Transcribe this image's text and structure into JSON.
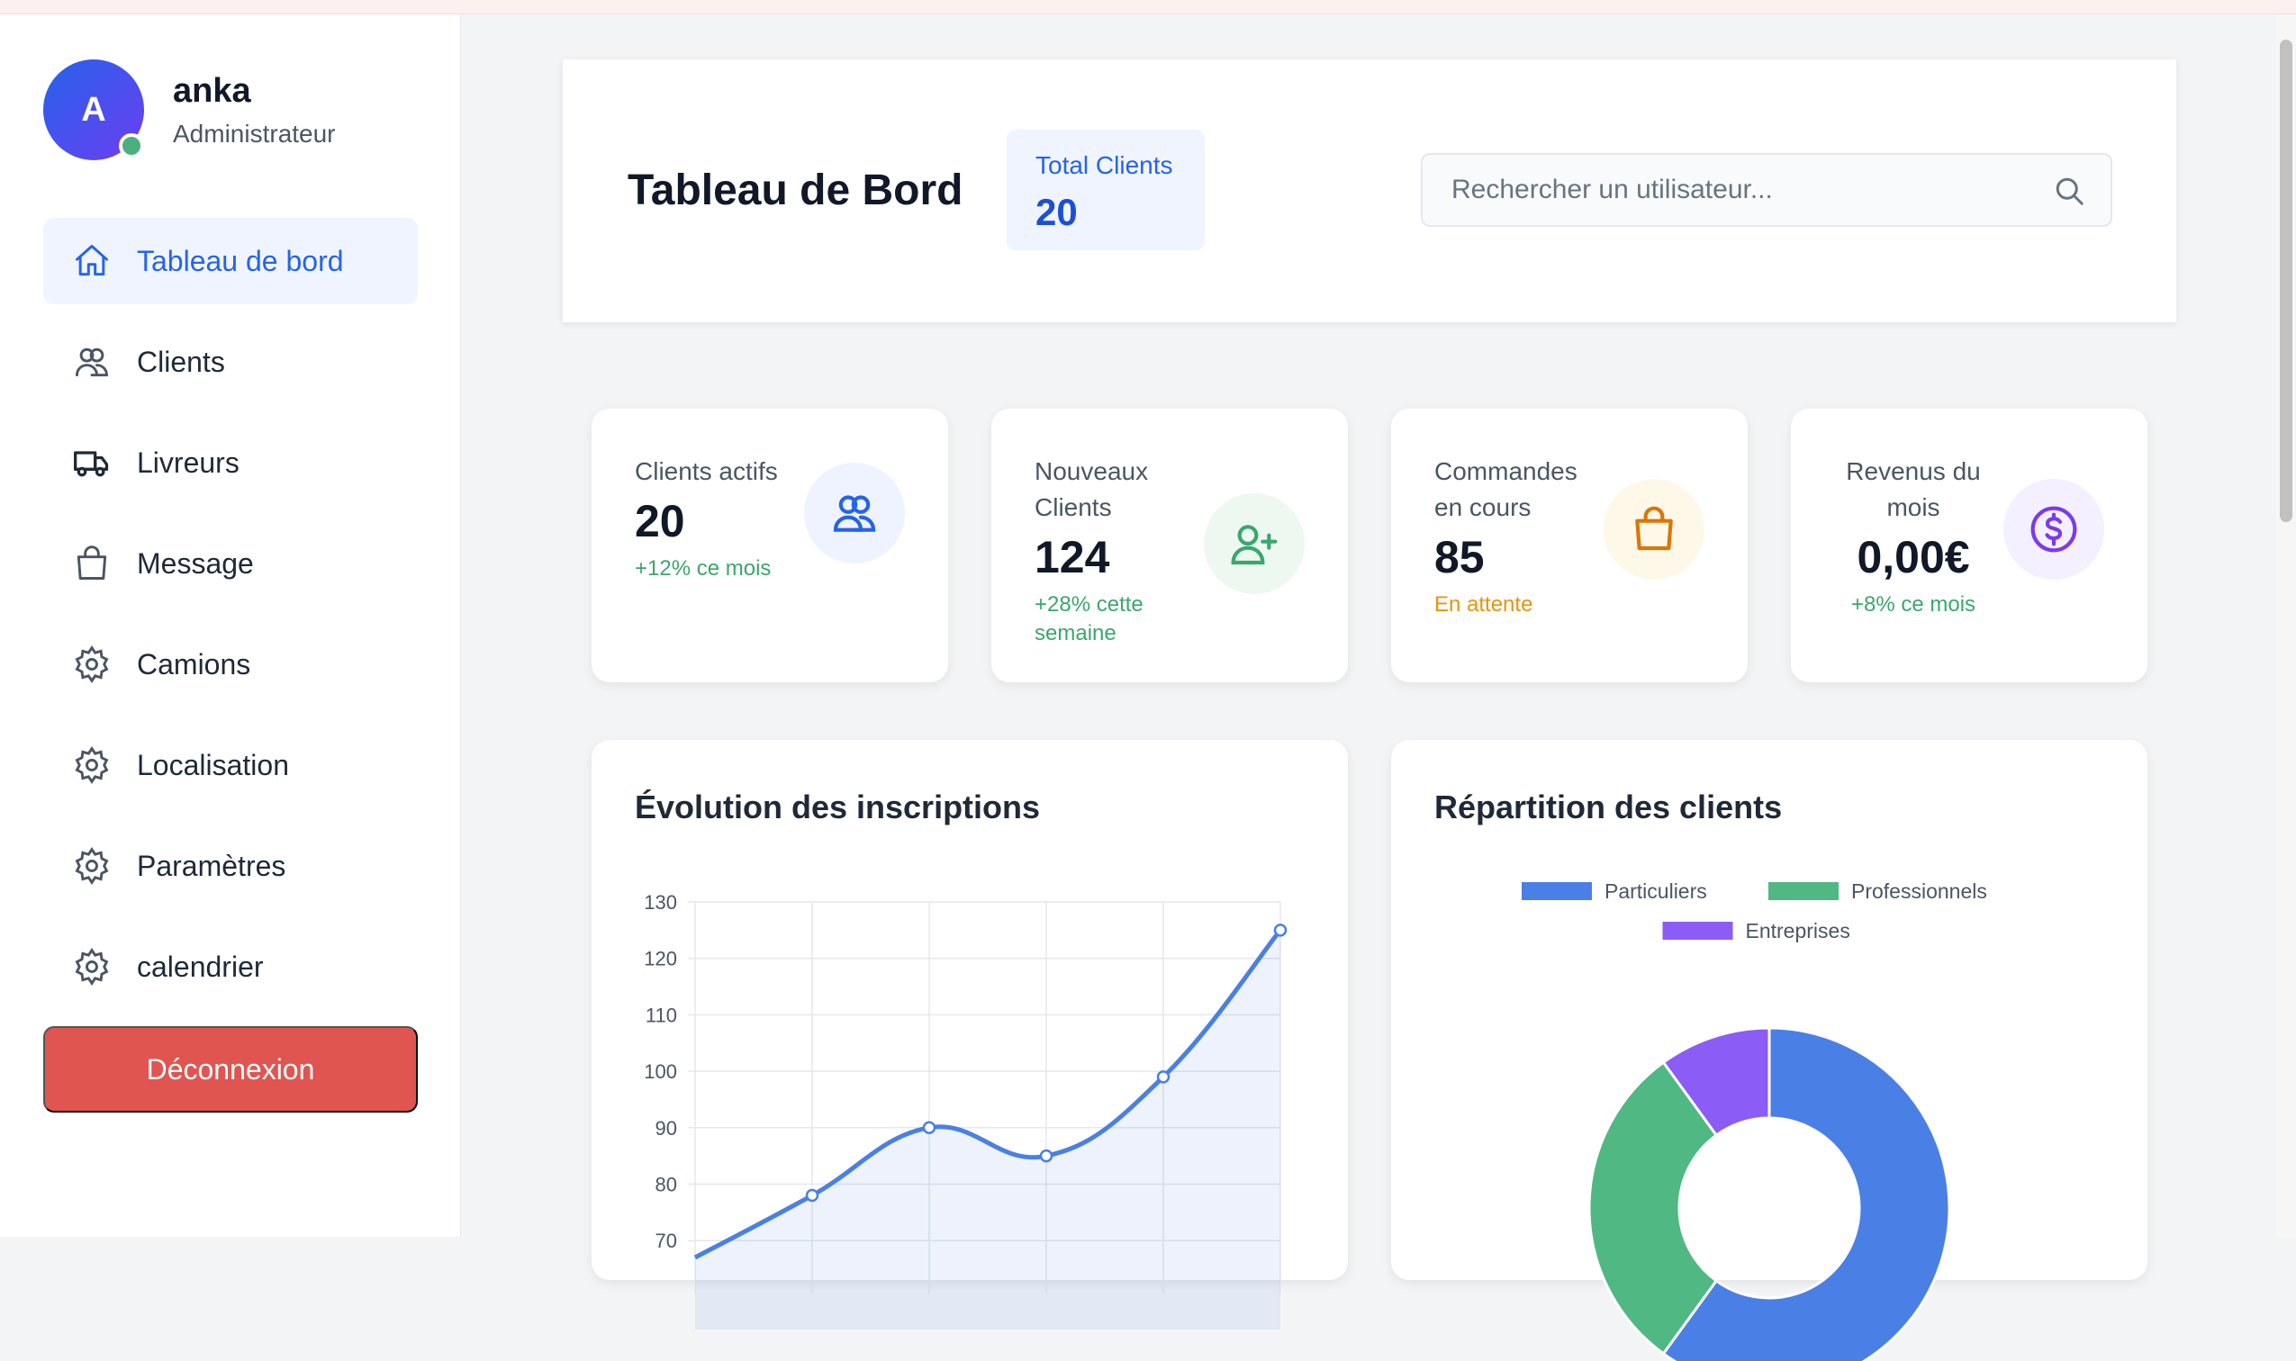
{
  "user": {
    "initial": "A",
    "name": "anka",
    "role": "Administrateur"
  },
  "sidebar": {
    "items": [
      {
        "label": "Tableau de bord",
        "icon": "home-icon",
        "active": true
      },
      {
        "label": "Clients",
        "icon": "users-icon"
      },
      {
        "label": "Livreurs",
        "icon": "truck-icon"
      },
      {
        "label": "Message",
        "icon": "shopping-bag-icon"
      },
      {
        "label": "Camions",
        "icon": "gear-icon"
      },
      {
        "label": "Localisation",
        "icon": "gear-icon"
      },
      {
        "label": "Paramètres",
        "icon": "gear-icon"
      },
      {
        "label": "calendrier",
        "icon": "gear-icon"
      }
    ],
    "logout_label": "Déconnexion"
  },
  "header": {
    "title": "Tableau de Bord",
    "total_label": "Total Clients",
    "total_value": "20",
    "search_placeholder": "Rechercher un utilisateur..."
  },
  "stats": [
    {
      "label": "Clients actifs",
      "value": "20",
      "sub": "+12% ce mois",
      "icon": "users-icon",
      "color": "#2563eb"
    },
    {
      "label": "Nouveaux Clients",
      "value": "124",
      "sub": "+28% cette semaine",
      "icon": "user-plus-icon",
      "color": "#3aa76d"
    },
    {
      "label": "Commandes en cours",
      "value": "85",
      "sub": "En attente",
      "icon": "shopping-bag-icon",
      "color": "#d97706"
    },
    {
      "label": "Revenus du mois",
      "value": "0,00€",
      "sub": "+8% ce mois",
      "icon": "dollar-circle-icon",
      "color": "#7c3aed"
    }
  ],
  "chart_data": [
    {
      "type": "line",
      "title": "Évolution des inscriptions",
      "x": [
        0,
        1,
        2,
        3,
        4,
        5
      ],
      "values": [
        67,
        78,
        90,
        85,
        99,
        125
      ],
      "yticks": [
        130,
        120,
        110,
        100,
        90,
        80,
        70
      ],
      "ylim": [
        67,
        130
      ],
      "grid": true,
      "fill": true,
      "color": "#4a7fe6"
    },
    {
      "type": "pie",
      "title": "Répartition des clients",
      "legend_position": "top",
      "series": [
        {
          "name": "Particuliers",
          "value": 60,
          "color": "#4a7fe6"
        },
        {
          "name": "Professionnels",
          "value": 30,
          "color": "#4fb883"
        },
        {
          "name": "Entreprises",
          "value": 10,
          "color": "#8b5cf6"
        }
      ]
    }
  ]
}
